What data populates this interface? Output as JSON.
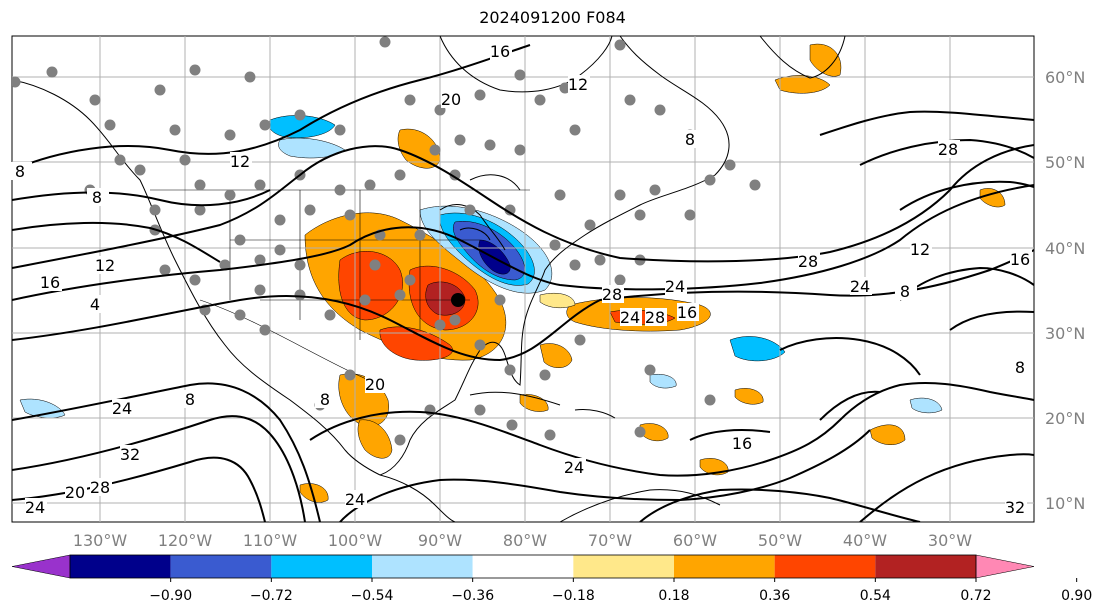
{
  "title": "2024091200 F084",
  "lon_labels": [
    "130°W",
    "120°W",
    "110°W",
    "100°W",
    "90°W",
    "80°W",
    "70°W",
    "60°W",
    "50°W",
    "40°W",
    "30°W"
  ],
  "lat_labels": [
    "60°N",
    "50°N",
    "40°N",
    "30°N",
    "20°N",
    "10°N"
  ],
  "contour_labels": [
    "16",
    "12",
    "8",
    "12",
    "20",
    "8",
    "8",
    "12",
    "16",
    "24",
    "28",
    "24",
    "16",
    "12",
    "8",
    "16",
    "28",
    "24",
    "28",
    "28",
    "24",
    "24",
    "16",
    "24",
    "8",
    "4",
    "8",
    "32",
    "20",
    "28",
    "24",
    "20",
    "32",
    "8"
  ],
  "colorbar": {
    "ticks": [
      "−0.90",
      "−0.72",
      "−0.54",
      "−0.36",
      "−0.18",
      "0.18",
      "0.36",
      "0.54",
      "0.72",
      "0.90"
    ],
    "colors": [
      "#9932cc",
      "#00008b",
      "#3a5bd0",
      "#00bfff",
      "#aee3ff",
      "#ffffff",
      "#ffe88a",
      "#ffa500",
      "#ff4500",
      "#b22222",
      "#ff88b4"
    ]
  },
  "fill_colors": {
    "orange": "#ffa500",
    "light_yellow": "#ffe88a",
    "red_orange": "#ff4500",
    "dark_red": "#b22222",
    "light_blue": "#aee3ff",
    "deep_sky_blue": "#00bfff",
    "royal_blue": "#3a5bd0",
    "navy": "#00008b",
    "station_dot": "#808080"
  }
}
